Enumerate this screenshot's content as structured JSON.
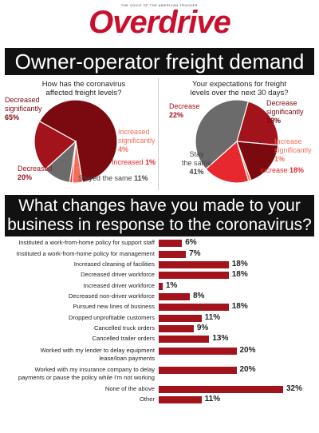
{
  "header": {
    "tagline": "THE VOICE OF THE AMERICAN TRUCKER",
    "logo": "Overdrive",
    "title": "Owner-operator freight demand",
    "title2_line1": "What changes have you made to your",
    "title2_line2": "business in response to the coronavirus?"
  },
  "colors": {
    "dark": "#7a0a0f",
    "mid": "#b3121b",
    "bright": "#e8282f",
    "salmon": "#f26e5a",
    "gray": "#6b6b6b",
    "bar": "#a3131b"
  },
  "chart_data": [
    {
      "type": "pie",
      "title": "How has the coronavirus affected freight levels?",
      "title_line1": "How has the coronavirus",
      "title_line2": "affected freight levels?",
      "slices": [
        {
          "name": "Decreased significantly",
          "value": 65,
          "label_line1": "Decreased",
          "label_line2": "significantly",
          "pct": "65%",
          "color": "#7a0a0f"
        },
        {
          "name": "Increased significantly",
          "value": 4,
          "label_line1": "Increased",
          "label_line2": "significantly",
          "pct": "4%",
          "color": "#f26e5a"
        },
        {
          "name": "Increased",
          "value": 1,
          "label_line1": "Increased",
          "pct": "1%",
          "color": "#e8282f"
        },
        {
          "name": "Stayed the same",
          "value": 11,
          "label_line1": "Stayed the same",
          "pct": "11%",
          "color": "#6b6b6b"
        },
        {
          "name": "Decreased",
          "value": 20,
          "label_line1": "Decreased",
          "pct": "20%",
          "color": "#a3131b"
        }
      ]
    },
    {
      "type": "pie",
      "title": "Your expectations for freight levels over the next 30 days?",
      "title_line1": "Your expectations for freight",
      "title_line2": "levels over the next 30 days?",
      "slices": [
        {
          "name": "Decrease",
          "value": 22,
          "label_line1": "Decrease",
          "pct": "22%",
          "color": "#a3131b"
        },
        {
          "name": "Decrease significantly",
          "value": 18,
          "label_line1": "Decrease",
          "label_line2": "significantly",
          "pct": "18%",
          "color": "#7a0a0f"
        },
        {
          "name": "Increase significantly",
          "value": 1,
          "label_line1": "Increase",
          "label_line2": "significantly",
          "pct": "1%",
          "color": "#f26e5a"
        },
        {
          "name": "Increase",
          "value": 18,
          "label_line1": "Increase",
          "pct": "18%",
          "color": "#e8282f"
        },
        {
          "name": "Stay the same",
          "value": 41,
          "label_line1": "Stay",
          "label_line2": "the same",
          "pct": "41%",
          "color": "#6b6b6b"
        }
      ]
    },
    {
      "type": "bar",
      "orientation": "horizontal",
      "title": "What changes have you made to your business in response to the coronavirus?",
      "categories": [
        "Instituted a work-from-home policy for support staff",
        "Instituted a work-from-home policy for management",
        "Increased cleaning of facilities",
        "Decreased driver workforce",
        "Increased driver workforce",
        "Decreased non-driver workforce",
        "Pursued new lines of business",
        "Dropped unprofitable customers",
        "Cancelled truck orders",
        "Cancelled trailer orders",
        "Worked with my lender to delay equipment lease/loan payments",
        "Worked with my insurance company to delay payments or pause the policy while I'm not working",
        "None of the above",
        "Other"
      ],
      "label_lines": [
        [
          "Instituted a work-from-home policy for support staff"
        ],
        [
          "Instituted a work-from-home policy for management"
        ],
        [
          "Increased cleaning of facilities"
        ],
        [
          "Decreased driver workforce"
        ],
        [
          "Increased driver workforce"
        ],
        [
          "Decreased non-driver workforce"
        ],
        [
          "Pursued new lines of business"
        ],
        [
          "Dropped unprofitable customers"
        ],
        [
          "Cancelled truck orders"
        ],
        [
          "Cancelled trailer orders"
        ],
        [
          "Worked with my lender to delay equipment",
          "lease/loan payments"
        ],
        [
          "Worked with my insurance company to delay",
          "payments or pause the policy while I'm not working"
        ],
        [
          "None of the above"
        ],
        [
          "Other"
        ]
      ],
      "values": [
        6,
        7,
        18,
        18,
        1,
        8,
        18,
        11,
        9,
        13,
        20,
        20,
        32,
        11
      ],
      "value_labels": [
        "6%",
        "7%",
        "18%",
        "18%",
        "1%",
        "8%",
        "18%",
        "11%",
        "9%",
        "13%",
        "20%",
        "20%",
        "32%",
        "11%"
      ],
      "xlim": [
        0,
        32
      ]
    }
  ]
}
